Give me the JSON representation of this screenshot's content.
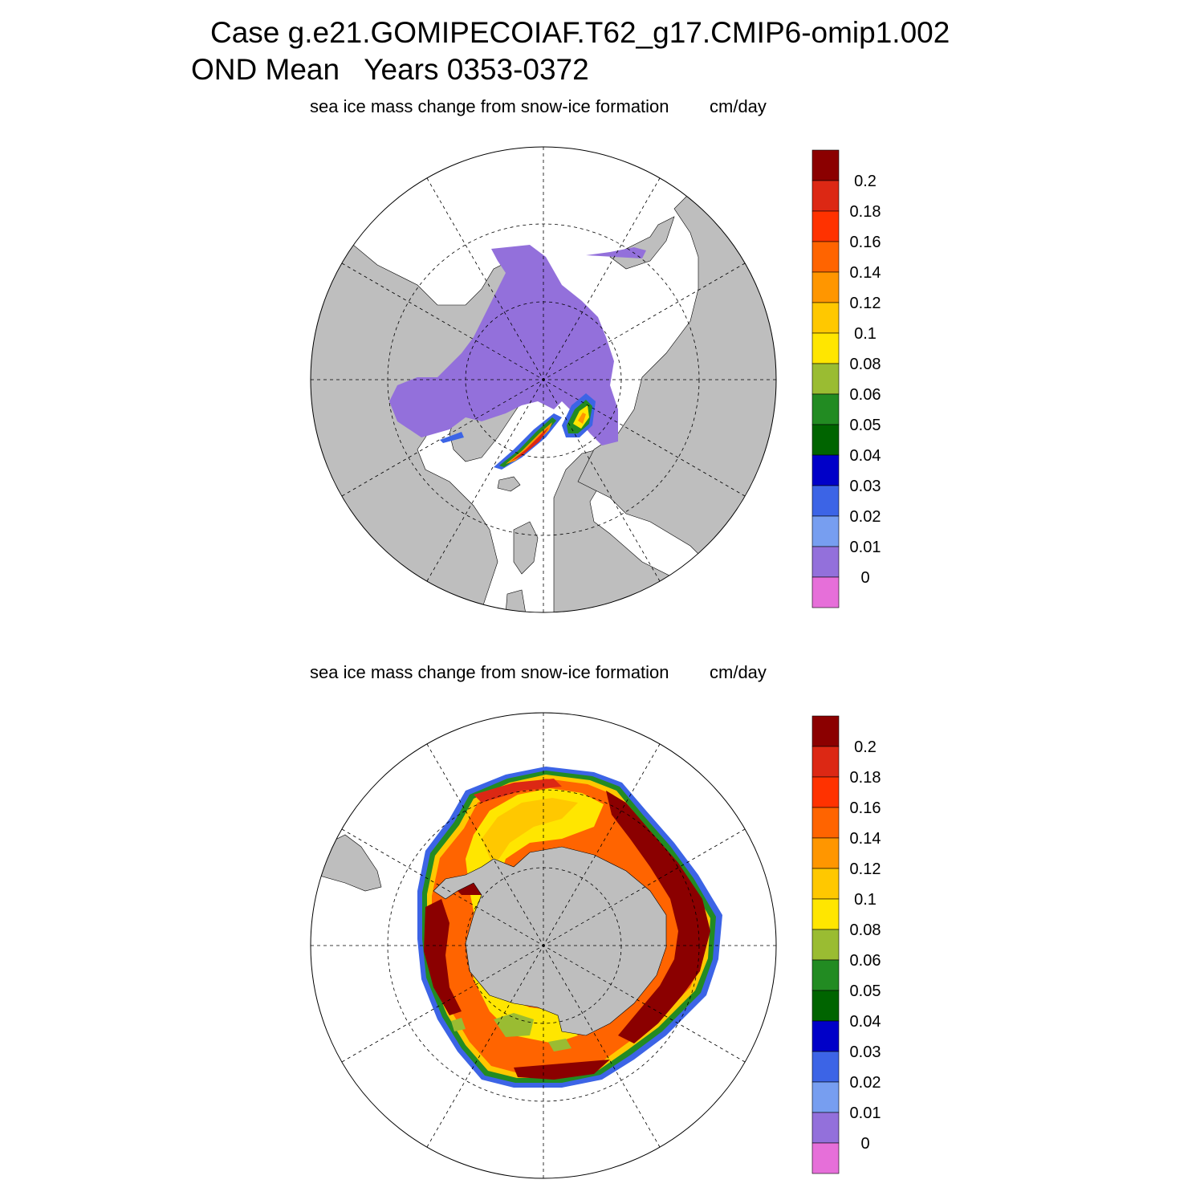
{
  "title": {
    "line1": "Case g.e21.GOMIPECOIAF.T62_g17.CMIP6-omip1.002",
    "line2": "OND Mean   Years 0353-0372"
  },
  "palette": [
    "#e66fd9",
    "#9370db",
    "#779ef0",
    "#3c64e6",
    "#0000c8",
    "#006400",
    "#228b22",
    "#9abc32",
    "#ffe600",
    "#ffc800",
    "#ff9600",
    "#ff6400",
    "#ff3200",
    "#dc2814",
    "#8b0000"
  ],
  "land_color": "#bebebe",
  "panels": [
    {
      "id": "north",
      "subtitle": "sea ice mass change from snow-ice formation",
      "units": "cm/day",
      "colorbar_labels": [
        "0",
        "0.01",
        "0.02",
        "0.03",
        "0.04",
        "0.05",
        "0.06",
        "0.08",
        "0.1",
        "0.12",
        "0.14",
        "0.16",
        "0.18",
        "0.2"
      ]
    },
    {
      "id": "south",
      "subtitle": "sea ice mass change from snow-ice formation",
      "units": "cm/day",
      "colorbar_labels": [
        "0",
        "0.01",
        "0.02",
        "0.03",
        "0.04",
        "0.05",
        "0.06",
        "0.08",
        "0.1",
        "0.12",
        "0.14",
        "0.16",
        "0.18",
        "0.2"
      ]
    }
  ]
}
